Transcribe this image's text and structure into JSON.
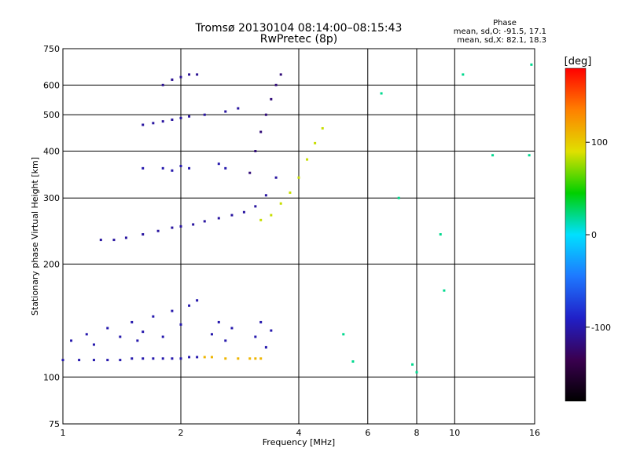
{
  "chart_data": {
    "type": "scatter",
    "title": "Tromsø 20130104 08:14:00–08:15:43",
    "subtitle": "RwPretec (8p)",
    "xlabel": "Frequency [MHz]",
    "ylabel": "Stationary phase Virtual Height [km]",
    "x_scale": "log",
    "y_scale": "log",
    "xlim": [
      1,
      16
    ],
    "ylim": [
      75,
      750
    ],
    "x_ticks": [
      1,
      2,
      4,
      6,
      8,
      10,
      16
    ],
    "y_ticks": [
      75,
      100,
      200,
      300,
      400,
      500,
      600,
      750
    ],
    "grid": true,
    "stats": {
      "title": "Phase",
      "line_o": "mean, sd,O: -91.5, 17.1",
      "line_x": "mean, sd,X:  82.1, 18.3"
    },
    "colorbar": {
      "label": "[deg]",
      "range": [
        -180,
        180
      ],
      "ticks": [
        -100,
        0,
        100
      ],
      "colors": [
        "#000000",
        "#3a0050",
        "#2020c8",
        "#1e78ff",
        "#00e0ff",
        "#00d000",
        "#e0e000",
        "#ff8000",
        "#ff0000"
      ]
    },
    "series": [
      {
        "trace": "O-E",
        "x": [
          1.0,
          1.1,
          1.2,
          1.3,
          1.4,
          1.5,
          1.6,
          1.7,
          1.8,
          1.9,
          2.0,
          2.1,
          2.2
        ],
        "y": [
          111,
          111,
          111,
          111,
          111,
          112,
          112,
          112,
          112,
          112,
          112,
          113,
          113
        ],
        "phase": -100
      },
      {
        "trace": "X-E",
        "x": [
          2.3,
          2.4,
          2.6,
          2.8,
          3.0,
          3.1,
          3.2
        ],
        "y": [
          113,
          113,
          112,
          112,
          112,
          112,
          112
        ],
        "phase": 110
      },
      {
        "trace": "E-diffuse",
        "x": [
          1.05,
          1.15,
          1.2,
          1.3,
          1.4,
          1.5,
          1.55,
          1.6,
          1.7,
          1.8,
          1.9,
          2.0,
          2.1,
          2.2,
          2.4,
          2.5,
          2.6,
          2.7,
          3.1,
          3.2,
          3.3,
          3.4
        ],
        "y": [
          125,
          130,
          122,
          135,
          128,
          140,
          125,
          132,
          145,
          128,
          150,
          138,
          155,
          160,
          130,
          140,
          125,
          135,
          128,
          140,
          120,
          133
        ],
        "phase": -100
      },
      {
        "trace": "O-F",
        "x": [
          1.25,
          1.35,
          1.45,
          1.6,
          1.75,
          1.9,
          2.0,
          2.15,
          2.3,
          2.5,
          2.7,
          2.9,
          3.1,
          3.3,
          3.5
        ],
        "y": [
          232,
          232,
          235,
          240,
          245,
          250,
          252,
          255,
          260,
          265,
          270,
          275,
          285,
          305,
          340
        ],
        "phase": -105
      },
      {
        "trace": "O-F-spread",
        "x": [
          3.0,
          3.1,
          3.2,
          3.3,
          3.4,
          3.5,
          3.6
        ],
        "y": [
          350,
          400,
          450,
          500,
          550,
          600,
          640
        ],
        "phase": -120
      },
      {
        "trace": "X-F",
        "x": [
          3.2,
          3.4,
          3.6,
          3.8,
          4.0,
          4.2,
          4.4,
          4.6
        ],
        "y": [
          262,
          270,
          290,
          310,
          340,
          380,
          420,
          460
        ],
        "phase": 85
      },
      {
        "trace": "O-2F",
        "x": [
          1.6,
          1.7,
          1.8,
          1.9,
          2.0,
          2.1,
          2.3,
          2.6,
          2.8
        ],
        "y": [
          470,
          475,
          480,
          485,
          490,
          495,
          500,
          510,
          520
        ],
        "phase": -105
      },
      {
        "trace": "O-upper",
        "x": [
          1.8,
          1.9,
          2.0,
          2.1,
          2.2
        ],
        "y": [
          600,
          620,
          630,
          640,
          640
        ],
        "phase": -110
      },
      {
        "trace": "O-mid",
        "x": [
          1.6,
          1.8,
          1.9,
          2.0,
          2.1,
          2.5,
          2.6
        ],
        "y": [
          360,
          360,
          355,
          365,
          360,
          370,
          360
        ],
        "phase": -100
      },
      {
        "trace": "noise",
        "x": [
          5.2,
          5.5,
          6.5,
          7.2,
          7.8,
          8.0,
          9.2,
          9.4,
          10.5,
          12.5,
          15.5,
          15.7
        ],
        "y": [
          130,
          110,
          570,
          300,
          108,
          103,
          240,
          170,
          640,
          390,
          390,
          680
        ],
        "phase": 20
      }
    ]
  }
}
